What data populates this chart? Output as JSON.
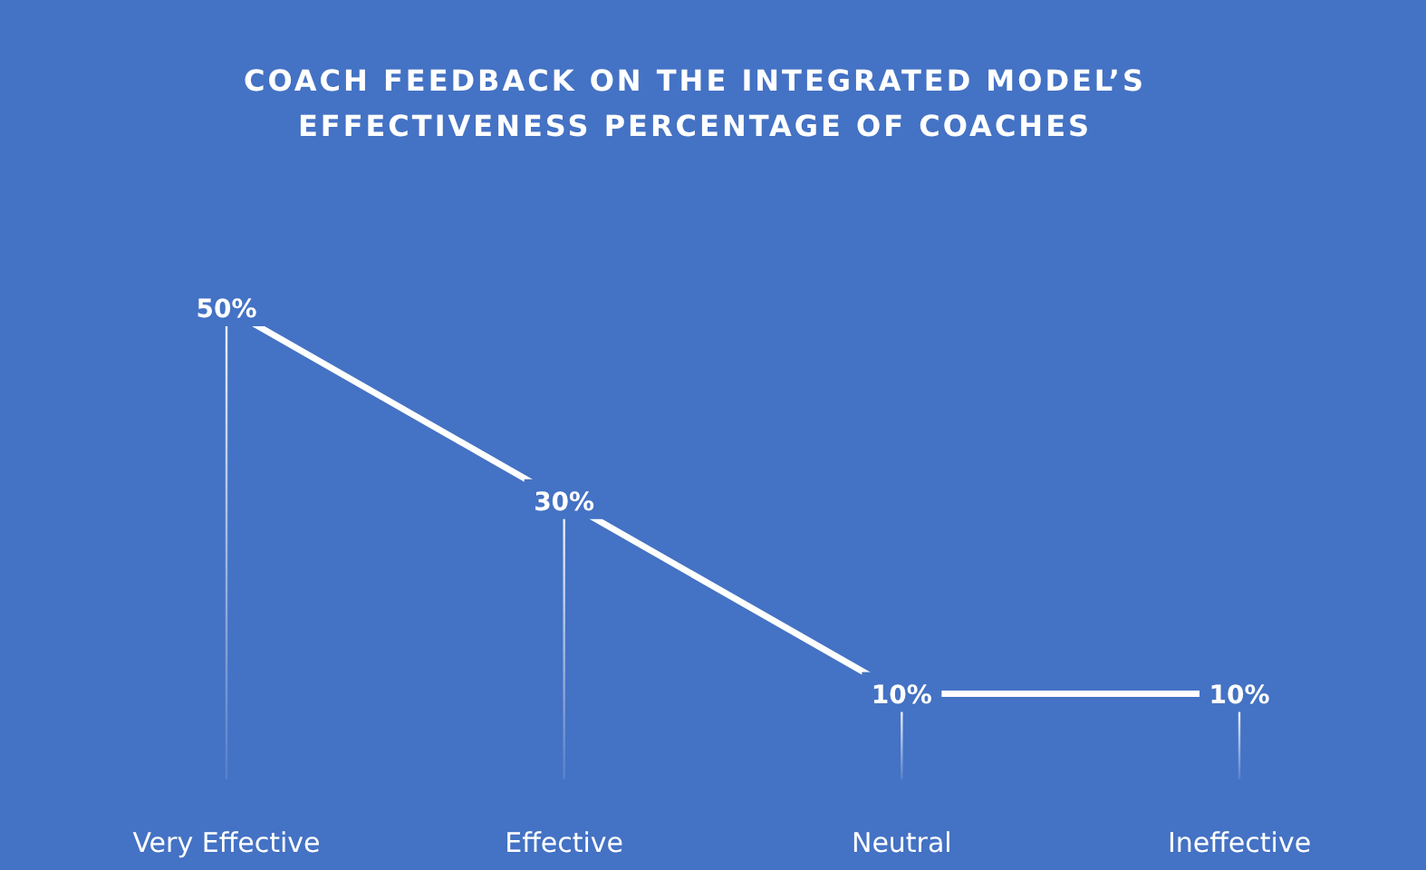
{
  "chart_data": {
    "type": "line",
    "title": "COACH FEEDBACK ON THE INTEGRATED MODEL’S EFFECTIVENESS PERCENTAGE OF COACHES",
    "categories": [
      "Very Effective",
      "Effective",
      "Neutral",
      "Ineffective"
    ],
    "series": [
      {
        "color": "#ffffff",
        "values": [
          50,
          30,
          10,
          10
        ],
        "value_labels": [
          "50%",
          "30%",
          "10%",
          "10%"
        ]
      }
    ],
    "line_style": "solid"
  }
}
